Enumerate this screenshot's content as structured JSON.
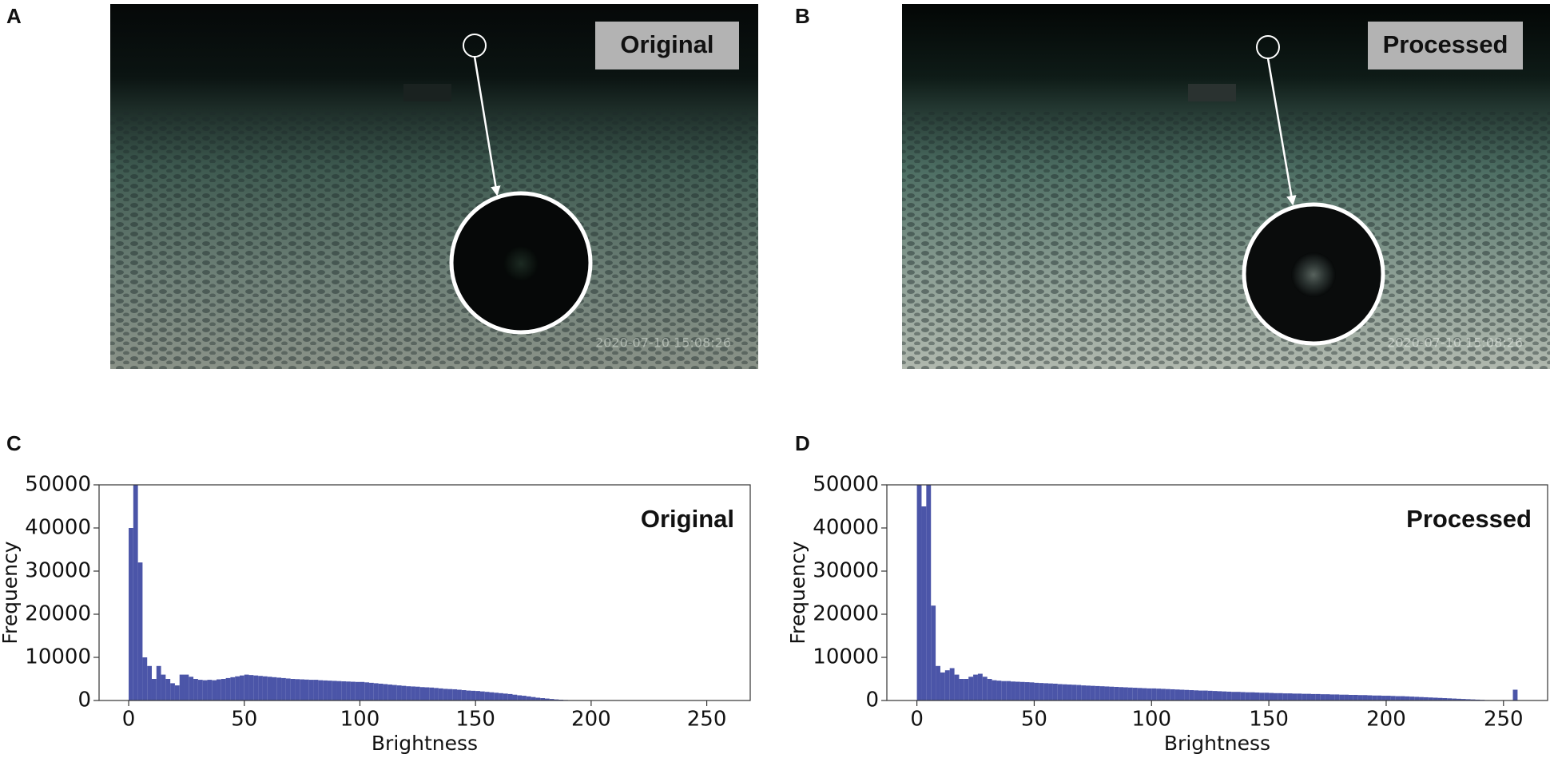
{
  "panels": [
    {
      "label": "A",
      "caption": "Original",
      "timestamp": "2020-07-10 15:08:26"
    },
    {
      "label": "B",
      "caption": "Processed",
      "timestamp": "2020-07-10 15:08:26"
    },
    {
      "label": "C"
    },
    {
      "label": "D"
    }
  ],
  "chart_data": [
    {
      "type": "histogram",
      "title": "Original",
      "xlabel": "Brightness",
      "ylabel": "Frequency",
      "color": "#4b55a8",
      "xlim": [
        -12.8,
        268.8
      ],
      "ylim": [
        0,
        50000
      ],
      "xticks": [
        0,
        50,
        100,
        150,
        200,
        250
      ],
      "yticks": [
        0,
        10000,
        20000,
        30000,
        40000,
        50000
      ],
      "bins": [
        0,
        2,
        4,
        6,
        8,
        10,
        12,
        14,
        16,
        18,
        20,
        22,
        24,
        26,
        28,
        30,
        32,
        34,
        36,
        38,
        40,
        42,
        44,
        46,
        48,
        50,
        52,
        54,
        56,
        58,
        60,
        62,
        64,
        66,
        68,
        70,
        72,
        74,
        76,
        78,
        80,
        82,
        84,
        86,
        88,
        90,
        92,
        94,
        96,
        98,
        100,
        102,
        104,
        106,
        108,
        110,
        112,
        114,
        116,
        118,
        120,
        122,
        124,
        126,
        128,
        130,
        132,
        134,
        136,
        138,
        140,
        142,
        144,
        146,
        148,
        150,
        152,
        154,
        156,
        158,
        160,
        162,
        164,
        166,
        168,
        170,
        172,
        174,
        176,
        178,
        180,
        182,
        184,
        186,
        188,
        190,
        192,
        194,
        196,
        198,
        200,
        202,
        204,
        206,
        208,
        210,
        212,
        214,
        216,
        218,
        220,
        222,
        224,
        226,
        228,
        230,
        232,
        234,
        236,
        238,
        240,
        242,
        244,
        246,
        248,
        250,
        252,
        254,
        256
      ],
      "values": [
        40000,
        50000,
        32000,
        10000,
        8000,
        5000,
        8000,
        6000,
        5000,
        4000,
        3500,
        6000,
        6000,
        5500,
        5000,
        4800,
        4700,
        4800,
        4700,
        4900,
        5000,
        5200,
        5400,
        5600,
        5800,
        6000,
        5900,
        5800,
        5700,
        5600,
        5500,
        5400,
        5300,
        5200,
        5100,
        5000,
        4950,
        4900,
        4850,
        4800,
        4800,
        4700,
        4650,
        4600,
        4550,
        4500,
        4450,
        4400,
        4350,
        4300,
        4300,
        4200,
        4100,
        4000,
        3900,
        3800,
        3700,
        3600,
        3500,
        3400,
        3300,
        3250,
        3200,
        3100,
        3050,
        3000,
        2900,
        2800,
        2700,
        2650,
        2600,
        2500,
        2400,
        2300,
        2250,
        2200,
        2100,
        2000,
        1900,
        1800,
        1700,
        1600,
        1500,
        1350,
        1200,
        1100,
        950,
        800,
        650,
        550,
        450,
        350,
        250,
        180,
        120,
        80,
        50,
        30,
        15,
        5,
        0,
        0,
        0,
        0,
        0,
        0,
        0,
        0,
        0,
        0,
        0,
        0,
        0,
        0,
        0,
        0,
        0,
        0,
        0,
        0,
        0,
        0,
        0,
        0,
        0,
        0,
        0,
        0
      ]
    },
    {
      "type": "histogram",
      "title": "Processed",
      "xlabel": "Brightness",
      "ylabel": "Frequency",
      "color": "#4b55a8",
      "xlim": [
        -12.8,
        268.8
      ],
      "ylim": [
        0,
        50000
      ],
      "xticks": [
        0,
        50,
        100,
        150,
        200,
        250
      ],
      "yticks": [
        0,
        10000,
        20000,
        30000,
        40000,
        50000
      ],
      "bins": [
        0,
        2,
        4,
        6,
        8,
        10,
        12,
        14,
        16,
        18,
        20,
        22,
        24,
        26,
        28,
        30,
        32,
        34,
        36,
        38,
        40,
        42,
        44,
        46,
        48,
        50,
        52,
        54,
        56,
        58,
        60,
        62,
        64,
        66,
        68,
        70,
        72,
        74,
        76,
        78,
        80,
        82,
        84,
        86,
        88,
        90,
        92,
        94,
        96,
        98,
        100,
        102,
        104,
        106,
        108,
        110,
        112,
        114,
        116,
        118,
        120,
        122,
        124,
        126,
        128,
        130,
        132,
        134,
        136,
        138,
        140,
        142,
        144,
        146,
        148,
        150,
        152,
        154,
        156,
        158,
        160,
        162,
        164,
        166,
        168,
        170,
        172,
        174,
        176,
        178,
        180,
        182,
        184,
        186,
        188,
        190,
        192,
        194,
        196,
        198,
        200,
        202,
        204,
        206,
        208,
        210,
        212,
        214,
        216,
        218,
        220,
        222,
        224,
        226,
        228,
        230,
        232,
        234,
        236,
        238,
        240,
        242,
        244,
        246,
        248,
        250,
        252,
        254,
        256
      ],
      "values": [
        50000,
        45000,
        50000,
        22000,
        8000,
        6500,
        7000,
        7500,
        6000,
        5000,
        5000,
        5500,
        6000,
        6200,
        5500,
        5000,
        4700,
        4600,
        4500,
        4500,
        4400,
        4350,
        4300,
        4250,
        4200,
        4100,
        4050,
        4000,
        3950,
        3900,
        3800,
        3750,
        3700,
        3650,
        3600,
        3500,
        3450,
        3400,
        3350,
        3300,
        3250,
        3200,
        3150,
        3100,
        3050,
        3000,
        2950,
        2900,
        2850,
        2800,
        2800,
        2750,
        2700,
        2650,
        2600,
        2550,
        2500,
        2450,
        2400,
        2350,
        2300,
        2300,
        2250,
        2200,
        2150,
        2100,
        2050,
        2000,
        2000,
        1950,
        1900,
        1900,
        1850,
        1800,
        1800,
        1750,
        1700,
        1700,
        1650,
        1650,
        1600,
        1600,
        1550,
        1550,
        1500,
        1500,
        1450,
        1450,
        1400,
        1400,
        1350,
        1350,
        1300,
        1300,
        1250,
        1250,
        1200,
        1150,
        1150,
        1100,
        1100,
        1050,
        1000,
        1000,
        950,
        900,
        850,
        800,
        750,
        700,
        650,
        600,
        550,
        500,
        450,
        400,
        350,
        300,
        250,
        200,
        150,
        100,
        80,
        50,
        30,
        10,
        0,
        2500
      ]
    }
  ]
}
